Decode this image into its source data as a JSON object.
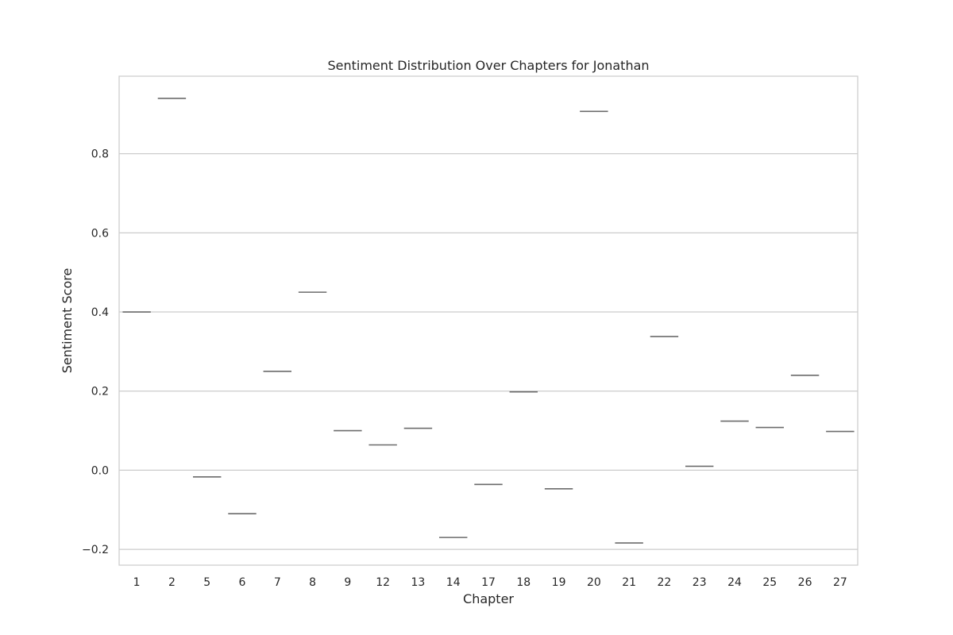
{
  "chart_data": {
    "type": "box",
    "title": "Sentiment Distribution Over Chapters for Jonathan",
    "xlabel": "Chapter",
    "ylabel": "Sentiment Score",
    "categories": [
      "1",
      "2",
      "5",
      "6",
      "7",
      "8",
      "9",
      "12",
      "13",
      "14",
      "17",
      "18",
      "19",
      "20",
      "21",
      "22",
      "23",
      "24",
      "25",
      "26",
      "27"
    ],
    "values": [
      0.4,
      0.94,
      -0.017,
      -0.11,
      0.25,
      0.45,
      0.1,
      0.064,
      0.106,
      -0.17,
      -0.036,
      0.198,
      -0.047,
      0.907,
      -0.184,
      0.338,
      0.01,
      0.124,
      0.108,
      0.24,
      0.098
    ],
    "ylim": [
      -0.24,
      0.996
    ],
    "yticks": [
      -0.2,
      0.0,
      0.2,
      0.4,
      0.6,
      0.8
    ],
    "ytick_labels": [
      "−0.2",
      "0.0",
      "0.2",
      "0.4",
      "0.6",
      "0.8"
    ],
    "grid": "y",
    "style": "whitegrid",
    "colors": {
      "median_line": "#6b6b6b",
      "grid": "#cccccc",
      "frame": "#cccccc",
      "text": "#262626"
    }
  }
}
